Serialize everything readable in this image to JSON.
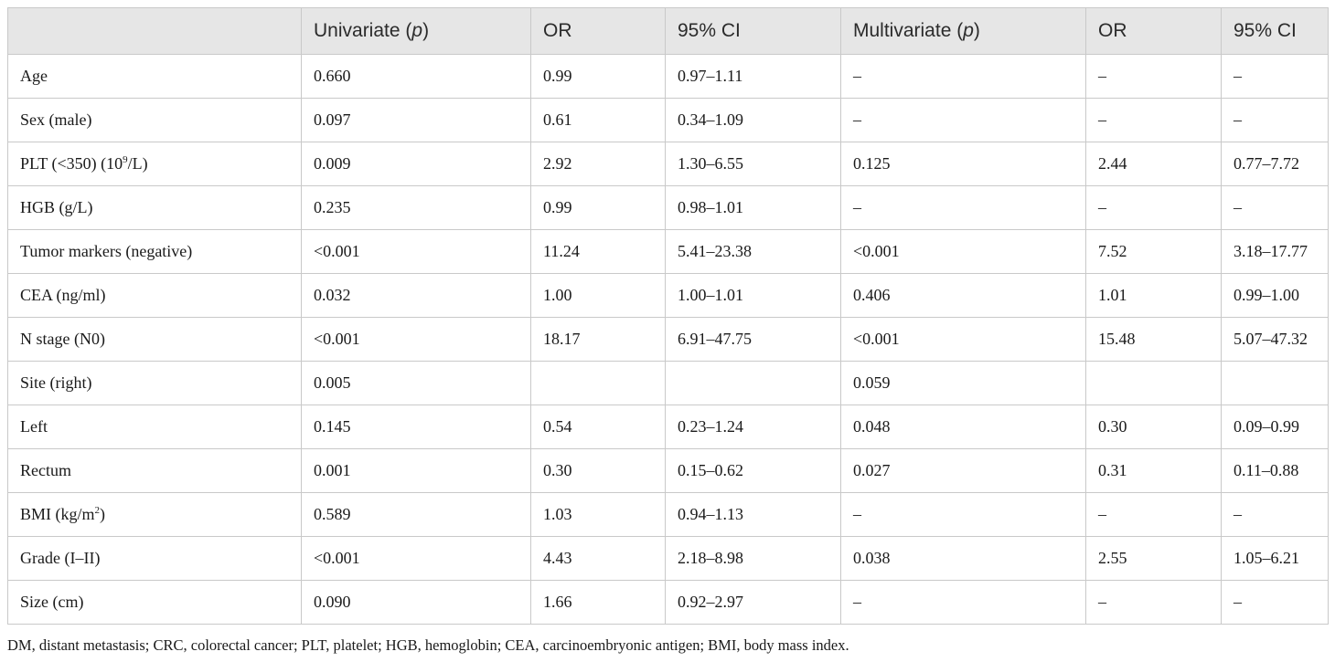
{
  "table": {
    "headers": [
      "",
      "Univariate (p)",
      "OR",
      "95% CI",
      "Multivariate (p)",
      "OR",
      "95% CI"
    ],
    "rows": [
      {
        "label": "Age",
        "cells": [
          "0.660",
          "0.99",
          "0.97–1.11",
          "–",
          "–",
          "–"
        ]
      },
      {
        "label": "Sex (male)",
        "cells": [
          "0.097",
          "0.61",
          "0.34–1.09",
          "–",
          "–",
          "–"
        ]
      },
      {
        "label": "PLT (<350) (10",
        "label_sup": "9",
        "label_post": "/L)",
        "cells": [
          "0.009",
          "2.92",
          "1.30–6.55",
          "0.125",
          "2.44",
          "0.77–7.72"
        ]
      },
      {
        "label": "HGB (g/L)",
        "cells": [
          "0.235",
          "0.99",
          "0.98–1.01",
          "–",
          "–",
          "–"
        ]
      },
      {
        "label": "Tumor markers (negative)",
        "cells": [
          "<0.001",
          "11.24",
          "5.41–23.38",
          "<0.001",
          "7.52",
          "3.18–17.77"
        ]
      },
      {
        "label": "CEA (ng/ml)",
        "cells": [
          "0.032",
          "1.00",
          "1.00–1.01",
          "0.406",
          "1.01",
          "0.99–1.00"
        ]
      },
      {
        "label": "N stage (N0)",
        "cells": [
          "<0.001",
          "18.17",
          "6.91–47.75",
          "<0.001",
          "15.48",
          "5.07–47.32"
        ]
      },
      {
        "label": "Site (right)",
        "cells": [
          "0.005",
          "",
          "",
          "0.059",
          "",
          ""
        ]
      },
      {
        "label": "Left",
        "cells": [
          "0.145",
          "0.54",
          "0.23–1.24",
          "0.048",
          "0.30",
          "0.09–0.99"
        ]
      },
      {
        "label": "Rectum",
        "cells": [
          "0.001",
          "0.30",
          "0.15–0.62",
          "0.027",
          "0.31",
          "0.11–0.88"
        ]
      },
      {
        "label": "BMI (kg/m",
        "label_sup": "2",
        "label_post": ")",
        "cells": [
          "0.589",
          "1.03",
          "0.94–1.13",
          "–",
          "–",
          "–"
        ]
      },
      {
        "label": "Grade (I–II)",
        "cells": [
          "<0.001",
          "4.43",
          "2.18–8.98",
          "0.038",
          "2.55",
          "1.05–6.21"
        ]
      },
      {
        "label": "Size (cm)",
        "cells": [
          "0.090",
          "1.66",
          "0.92–2.97",
          "–",
          "–",
          "–"
        ]
      }
    ]
  },
  "footnote": "DM, distant metastasis; CRC, colorectal cancer; PLT, platelet; HGB, hemoglobin; CEA, carcinoembryonic antigen; BMI, body mass index."
}
